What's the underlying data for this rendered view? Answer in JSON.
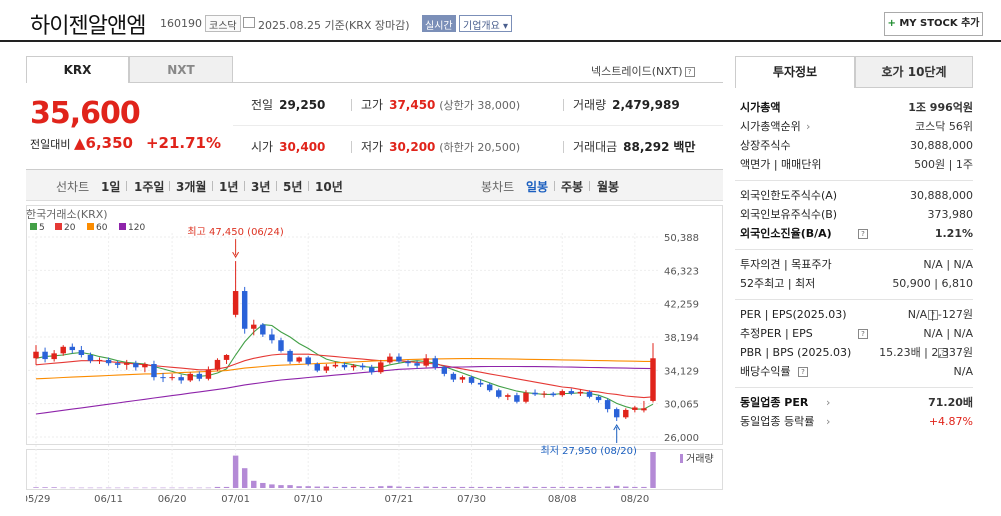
{
  "header": {
    "name": "하이젠알앤엠",
    "code": "160190",
    "market": "코스닥",
    "date": "2025.08.25",
    "basis": "기준(KRX 장마감)",
    "realtime": "실시간",
    "company_info": "기업개요",
    "mystock": "MY STOCK 추가",
    "mystock_plus": "+"
  },
  "exchange_tabs": {
    "active": "KRX",
    "inactive": "NXT"
  },
  "nxt_link": "넥스트레이드(NXT)",
  "quote": {
    "price": "35,600",
    "change_label": "전일대비",
    "change_value": "▲6,350",
    "change_pct": "+21.71%"
  },
  "stats": {
    "prev_label": "전일",
    "prev": "29,250",
    "high_label": "고가",
    "high": "37,450",
    "high_sub": "(상한가 38,000)",
    "volume_label": "거래량",
    "volume": "2,479,989",
    "open_label": "시가",
    "open": "30,400",
    "low_label": "저가",
    "low": "30,200",
    "low_sub": "(하한가 20,500)",
    "amount_label": "거래대금",
    "amount": "88,292",
    "amount_unit": "백만"
  },
  "chart_toolbar": {
    "line_label": "선차트",
    "periods": [
      "1일",
      "1주일",
      "3개월",
      "1년",
      "3년",
      "5년",
      "10년"
    ],
    "candle_label": "봉차트",
    "candles": [
      "일봉",
      "주봉",
      "월봉"
    ]
  },
  "chart_data": {
    "type": "candlestick",
    "source": "한국거래소(KRX)",
    "ma_legend": [
      {
        "name": "5",
        "color": "#43a047"
      },
      {
        "name": "20",
        "color": "#e53935"
      },
      {
        "name": "60",
        "color": "#fb8c00"
      },
      {
        "name": "120",
        "color": "#8e24aa"
      }
    ],
    "y_ticks": [
      "50,388",
      "46,323",
      "42,259",
      "38,194",
      "34,129",
      "30,065",
      "26,000"
    ],
    "ylim": [
      26000,
      50388
    ],
    "x_ticks": [
      "05/29",
      "06/11",
      "06/20",
      "07/01",
      "07/10",
      "07/21",
      "07/30",
      "08/08",
      "08/20"
    ],
    "max_annotation": "최고 47,450 (06/24)",
    "min_annotation": "최저 27,950 (08/20)",
    "volume_label": "거래량",
    "up_color": "#e0241b",
    "down_color": "#2a62d8",
    "candles": [
      [
        35600,
        37200,
        34800,
        36400
      ],
      [
        36400,
        36900,
        35100,
        35500
      ],
      [
        35500,
        36600,
        35200,
        36200
      ],
      [
        36200,
        37200,
        35900,
        37000
      ],
      [
        37000,
        37400,
        36200,
        36600
      ],
      [
        36600,
        37100,
        35700,
        36000
      ],
      [
        36000,
        36300,
        35000,
        35300
      ],
      [
        35300,
        35700,
        34900,
        35400
      ],
      [
        35400,
        35700,
        34700,
        35000
      ],
      [
        35000,
        35300,
        34400,
        34800
      ],
      [
        34800,
        35400,
        34200,
        35000
      ],
      [
        35000,
        35300,
        34100,
        34500
      ],
      [
        34500,
        35100,
        33900,
        34900
      ],
      [
        34900,
        35300,
        32900,
        33300
      ],
      [
        33300,
        33800,
        32700,
        33200
      ],
      [
        33200,
        33700,
        32900,
        33300
      ],
      [
        33300,
        33600,
        32500,
        32900
      ],
      [
        32900,
        33900,
        32700,
        33700
      ],
      [
        33700,
        34000,
        32800,
        33100
      ],
      [
        33100,
        34600,
        32900,
        34200
      ],
      [
        34200,
        35600,
        34000,
        35400
      ],
      [
        35400,
        36100,
        34900,
        36000
      ],
      [
        40900,
        47450,
        40600,
        43800
      ],
      [
        43800,
        44300,
        38600,
        39200
      ],
      [
        39200,
        40300,
        38400,
        39700
      ],
      [
        39700,
        39900,
        38200,
        38500
      ],
      [
        38500,
        39200,
        37400,
        37800
      ],
      [
        37800,
        38100,
        36300,
        36500
      ],
      [
        36500,
        36700,
        34900,
        35200
      ],
      [
        35200,
        35800,
        35000,
        35700
      ],
      [
        35700,
        35900,
        34700,
        34900
      ],
      [
        34900,
        35100,
        33900,
        34100
      ],
      [
        34100,
        34900,
        33800,
        34600
      ],
      [
        34600,
        35200,
        34400,
        34800
      ],
      [
        34800,
        35100,
        34200,
        34500
      ],
      [
        34500,
        34900,
        34100,
        34700
      ],
      [
        34700,
        35000,
        34200,
        34500
      ],
      [
        34500,
        34800,
        33600,
        33900
      ],
      [
        33900,
        35400,
        33700,
        35100
      ],
      [
        35100,
        36200,
        34900,
        35800
      ],
      [
        35800,
        36200,
        35000,
        35200
      ],
      [
        35200,
        35400,
        34600,
        35000
      ],
      [
        35000,
        35300,
        34300,
        34700
      ],
      [
        34700,
        36100,
        34500,
        35600
      ],
      [
        35600,
        35900,
        34200,
        34500
      ],
      [
        34500,
        34700,
        33400,
        33700
      ],
      [
        33700,
        33900,
        32700,
        33000
      ],
      [
        33000,
        33500,
        32600,
        33300
      ],
      [
        33300,
        33500,
        32400,
        32600
      ],
      [
        32600,
        33000,
        32100,
        32400
      ],
      [
        32400,
        32600,
        31500,
        31700
      ],
      [
        31700,
        31900,
        30700,
        30900
      ],
      [
        30900,
        31300,
        30500,
        31100
      ],
      [
        31100,
        31400,
        30100,
        30300
      ],
      [
        30300,
        31700,
        30100,
        31400
      ],
      [
        31400,
        31800,
        31000,
        31200
      ],
      [
        31200,
        31600,
        30800,
        31300
      ],
      [
        31300,
        31500,
        30900,
        31100
      ],
      [
        31100,
        31800,
        30900,
        31600
      ],
      [
        31600,
        31900,
        31100,
        31300
      ],
      [
        31300,
        31800,
        31000,
        31500
      ],
      [
        31500,
        31700,
        30700,
        30900
      ],
      [
        30900,
        31100,
        30200,
        30500
      ],
      [
        30500,
        30700,
        29000,
        29400
      ],
      [
        29400,
        29600,
        27950,
        28400
      ],
      [
        28400,
        29500,
        28200,
        29300
      ],
      [
        29300,
        29800,
        29000,
        29600
      ],
      [
        29250,
        30400,
        29000,
        29500
      ],
      [
        30400,
        37450,
        30200,
        35600
      ]
    ],
    "ma5": [
      35600,
      35800,
      35900,
      36000,
      36200,
      36300,
      36100,
      35800,
      35600,
      35300,
      35100,
      35000,
      34900,
      34600,
      34300,
      34000,
      33700,
      33500,
      33400,
      33500,
      33800,
      34300,
      36000,
      37600,
      38800,
      39700,
      39600,
      38800,
      38200,
      37400,
      36800,
      36100,
      35500,
      35200,
      35000,
      34800,
      34600,
      34500,
      34500,
      34800,
      35000,
      35200,
      35300,
      35200,
      35000,
      34600,
      34200,
      33800,
      33400,
      33000,
      32600,
      32200,
      31900,
      31600,
      31400,
      31300,
      31200,
      31200,
      31300,
      31300,
      31400,
      31300,
      31100,
      30700,
      30100,
      29700,
      29400,
      29400,
      30000
    ],
    "ma20": [
      34800,
      34900,
      35000,
      35100,
      35200,
      35300,
      35300,
      35300,
      35200,
      35100,
      35000,
      34900,
      34800,
      34700,
      34600,
      34500,
      34400,
      34300,
      34200,
      34200,
      34300,
      34500,
      34900,
      35300,
      35600,
      35800,
      36000,
      36100,
      36100,
      36100,
      36100,
      36000,
      35900,
      35800,
      35700,
      35600,
      35500,
      35400,
      35300,
      35300,
      35300,
      35200,
      35100,
      35000,
      34900,
      34700,
      34500,
      34300,
      34100,
      33900,
      33700,
      33500,
      33300,
      33100,
      32900,
      32700,
      32500,
      32300,
      32100,
      32000,
      31800,
      31600,
      31500,
      31300,
      31200,
      31000,
      30900,
      30800,
      30900
    ],
    "ma60": [
      33100,
      33150,
      33200,
      33250,
      33300,
      33350,
      33400,
      33450,
      33500,
      33550,
      33600,
      33650,
      33700,
      33700,
      33750,
      33800,
      33850,
      33900,
      33950,
      34000,
      34050,
      34100,
      34250,
      34400,
      34500,
      34600,
      34700,
      34750,
      34800,
      34850,
      34900,
      34950,
      35000,
      35050,
      35100,
      35150,
      35200,
      35250,
      35300,
      35350,
      35400,
      35450,
      35480,
      35500,
      35520,
      35540,
      35550,
      35560,
      35560,
      35560,
      35550,
      35540,
      35520,
      35500,
      35480,
      35460,
      35440,
      35420,
      35400,
      35380,
      35360,
      35340,
      35320,
      35300,
      35280,
      35260,
      35240,
      35220,
      35220
    ],
    "ma120": [
      28800,
      28950,
      29100,
      29250,
      29400,
      29550,
      29700,
      29850,
      30000,
      30150,
      30300,
      30450,
      30600,
      30750,
      30900,
      31050,
      31200,
      31350,
      31500,
      31650,
      31800,
      31950,
      32150,
      32350,
      32500,
      32650,
      32800,
      32950,
      33050,
      33150,
      33250,
      33350,
      33450,
      33550,
      33650,
      33750,
      33850,
      33950,
      34050,
      34150,
      34250,
      34300,
      34350,
      34400,
      34450,
      34500,
      34520,
      34540,
      34560,
      34580,
      34600,
      34600,
      34600,
      34600,
      34590,
      34580,
      34570,
      34560,
      34540,
      34520,
      34500,
      34480,
      34460,
      34440,
      34420,
      34400,
      34380,
      34360,
      34340
    ],
    "volumes": [
      2,
      2,
      2,
      1,
      1,
      1,
      1,
      1,
      1,
      1,
      1,
      1,
      1,
      1,
      1,
      1,
      1,
      1,
      1,
      1,
      3,
      3,
      90,
      55,
      20,
      14,
      10,
      8,
      8,
      5,
      5,
      4,
      4,
      3,
      3,
      3,
      3,
      3,
      5,
      6,
      4,
      3,
      3,
      4,
      3,
      3,
      3,
      3,
      3,
      3,
      3,
      3,
      3,
      3,
      4,
      3,
      3,
      3,
      3,
      3,
      3,
      3,
      3,
      4,
      6,
      4,
      3,
      3,
      100
    ]
  },
  "right_panel": {
    "tabs": [
      "투자정보",
      "호가 10단계"
    ],
    "rows1": [
      {
        "k": "시가총액",
        "v": "1조 996억원",
        "bold": true
      },
      {
        "k": "시가총액순위",
        "v": "코스닥 56위",
        "arrow": true
      },
      {
        "k": "상장주식수",
        "v": "30,888,000"
      },
      {
        "k": "액면가 | 매매단위",
        "v": "500원 | 1주"
      }
    ],
    "rows2": [
      {
        "k": "외국인한도주식수(A)",
        "v": "30,888,000"
      },
      {
        "k": "외국인보유주식수(B)",
        "v": "373,980"
      },
      {
        "k": "외국인소진율(B/A)",
        "v": "1.21%",
        "bold": true,
        "q": true
      }
    ],
    "rows3": [
      {
        "k": "투자의견 | 목표주가",
        "v": "N/A | N/A"
      },
      {
        "k": "52주최고 | 최저",
        "v": "50,900 | 6,810"
      }
    ],
    "rows4": [
      {
        "k": "PER | EPS(2025.03)",
        "v": "N/A | -127원",
        "q": true
      },
      {
        "k": "추정PER | EPS",
        "v": "N/A | N/A",
        "q": true
      },
      {
        "k": "PBR | BPS (2025.03)",
        "v": "15.23배 | 2,337원",
        "q": true
      },
      {
        "k": "배당수익률",
        "v": "N/A",
        "q": true
      }
    ],
    "rows5": [
      {
        "k": "동일업종 PER",
        "v": "71.20배",
        "bold": true,
        "arrow": true
      },
      {
        "k": "동일업종 등락률",
        "v": "+4.87%",
        "arrow": true,
        "red": true
      }
    ]
  }
}
